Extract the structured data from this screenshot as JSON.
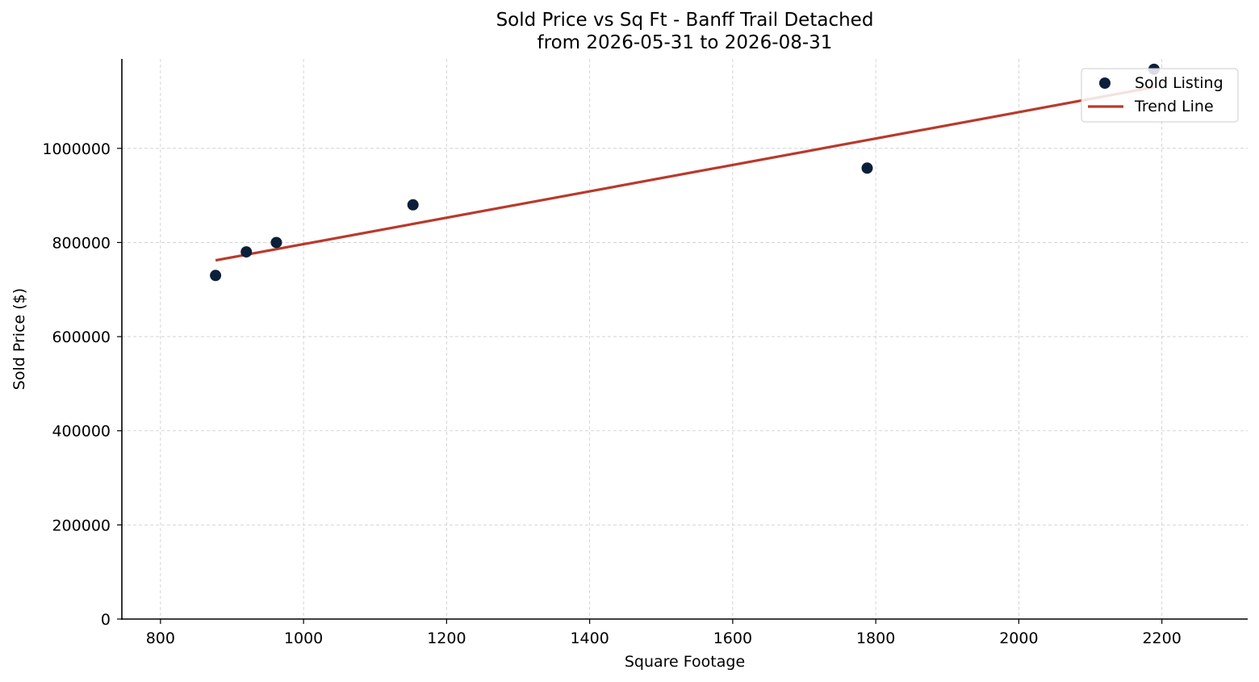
{
  "chart_data": {
    "type": "scatter",
    "title": "Sold Price vs Sq Ft - Banff Trail Detached",
    "subtitle": "from 2026-05-31 to 2026-08-31",
    "xlabel": "Square Footage",
    "ylabel": "Sold Price ($)",
    "xlim": [
      746,
      2320
    ],
    "ylim": [
      0,
      1190000
    ],
    "x_ticks": [
      800,
      1000,
      1200,
      1400,
      1600,
      1800,
      2000,
      2200
    ],
    "y_ticks": [
      0,
      200000,
      400000,
      600000,
      800000,
      1000000
    ],
    "grid": true,
    "legend_position": "top-right",
    "series": [
      {
        "name": "Sold Listing",
        "kind": "scatter",
        "color": "#0b1f3a",
        "points": [
          {
            "x": 877,
            "y": 730000
          },
          {
            "x": 920,
            "y": 780000
          },
          {
            "x": 962,
            "y": 800000
          },
          {
            "x": 1153,
            "y": 880000
          },
          {
            "x": 1788,
            "y": 958000
          },
          {
            "x": 2189,
            "y": 1168000
          }
        ]
      },
      {
        "name": "Trend Line",
        "kind": "line",
        "color": "#b83a2c",
        "points": [
          {
            "x": 877,
            "y": 762000
          },
          {
            "x": 2189,
            "y": 1130000
          }
        ]
      }
    ]
  }
}
